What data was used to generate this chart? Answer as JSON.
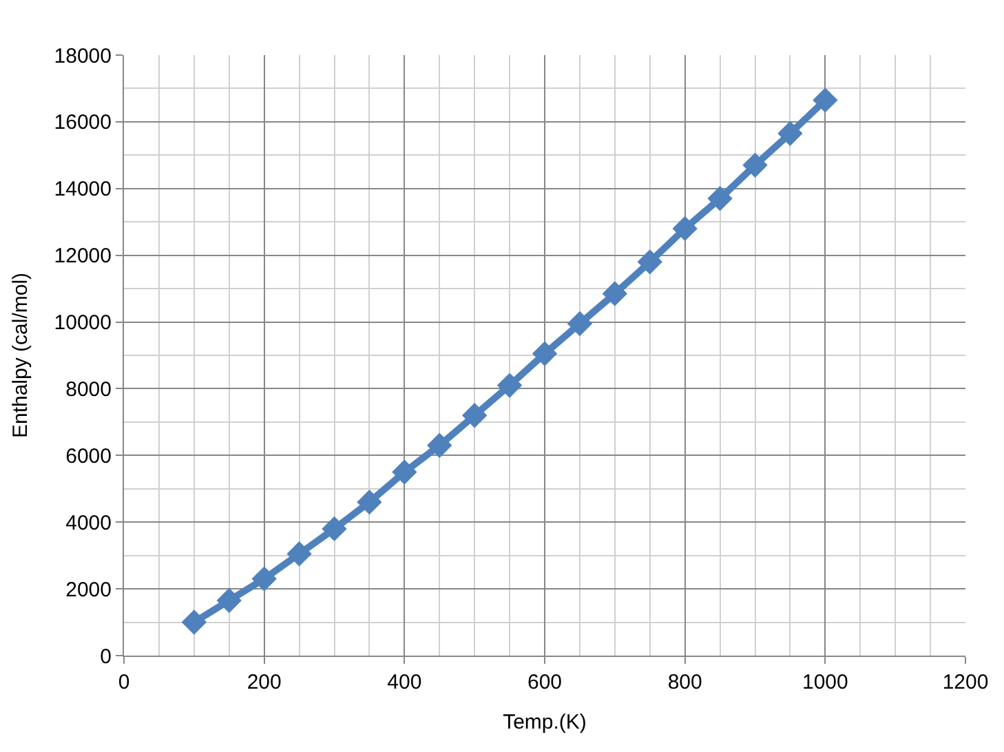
{
  "chart_data": {
    "type": "line",
    "xlabel": "Temp.(K)",
    "ylabel": "Enthalpy (cal/mol)",
    "x": [
      100,
      150,
      200,
      250,
      300,
      350,
      400,
      450,
      500,
      550,
      600,
      650,
      700,
      750,
      800,
      850,
      900,
      950,
      1000
    ],
    "series": [
      {
        "color": "#4f81bd",
        "values": [
          1000,
          1650,
          2300,
          3050,
          3800,
          4600,
          5500,
          6300,
          7200,
          8100,
          9050,
          9950,
          10850,
          11800,
          12800,
          13700,
          14700,
          15650,
          16650
        ]
      }
    ],
    "xlim": [
      0,
      1200
    ],
    "xticks": [
      0,
      200,
      400,
      600,
      800,
      1000,
      1200
    ],
    "ylim": [
      0,
      18000
    ],
    "yticks": [
      0,
      2000,
      4000,
      6000,
      8000,
      10000,
      12000,
      14000,
      16000,
      18000
    ],
    "grid": true,
    "marker": "diamond",
    "line_style": "solid",
    "legend": false
  }
}
